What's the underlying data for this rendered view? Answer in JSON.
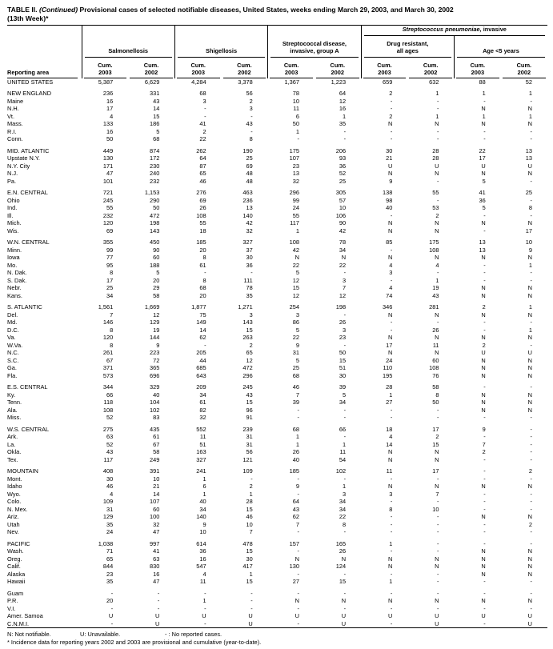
{
  "title": {
    "t1": "TABLE II. ",
    "t2": "(Continued)",
    "t3": " Provisional cases of selected notifiable diseases, United States, weeks ending March 29, 2003, and March 30, 2002",
    "line2": "(13th Week)*"
  },
  "header": {
    "reporting_area": "Reporting area",
    "strep_italic": "Streptococcus pneumoniae,",
    "strep_rest": " invasive",
    "groups": [
      "Salmonellosis",
      "Shigellosis",
      "Streptococcal disease,\ninvasive, group A",
      "Drug resistant,\nall ages",
      "Age <5 years"
    ],
    "cum_label": "Cum.",
    "year_cols": [
      "2003",
      "2002",
      "2003",
      "2002",
      "2003",
      "2002",
      "2003",
      "2002",
      "2003",
      "2002"
    ]
  },
  "table": {
    "rows": [
      {
        "a": "UNITED STATES",
        "v": [
          "5,387",
          "6,629",
          "4,284",
          "3,378",
          "1,367",
          "1,223",
          "659",
          "632",
          "88",
          "52"
        ]
      },
      {
        "a": "NEW ENGLAND",
        "gap": true,
        "v": [
          "236",
          "331",
          "68",
          "56",
          "78",
          "64",
          "2",
          "1",
          "1",
          "1"
        ]
      },
      {
        "a": "Maine",
        "v": [
          "16",
          "43",
          "3",
          "2",
          "10",
          "12",
          "-",
          "-",
          "-",
          "-"
        ]
      },
      {
        "a": "N.H.",
        "v": [
          "17",
          "14",
          "-",
          "3",
          "11",
          "16",
          "-",
          "-",
          "N",
          "N"
        ]
      },
      {
        "a": "Vt.",
        "v": [
          "4",
          "15",
          "-",
          "-",
          "6",
          "1",
          "2",
          "1",
          "1",
          "1"
        ]
      },
      {
        "a": "Mass.",
        "v": [
          "133",
          "186",
          "41",
          "43",
          "50",
          "35",
          "N",
          "N",
          "N",
          "N"
        ]
      },
      {
        "a": "R.I.",
        "v": [
          "16",
          "5",
          "2",
          "-",
          "1",
          "-",
          "-",
          "-",
          "-",
          "-"
        ]
      },
      {
        "a": "Conn.",
        "v": [
          "50",
          "68",
          "22",
          "8",
          "-",
          "-",
          "-",
          "-",
          "-",
          "-"
        ]
      },
      {
        "a": "MID. ATLANTIC",
        "gap": true,
        "v": [
          "449",
          "874",
          "262",
          "190",
          "175",
          "206",
          "30",
          "28",
          "22",
          "13"
        ]
      },
      {
        "a": "Upstate N.Y.",
        "v": [
          "130",
          "172",
          "64",
          "25",
          "107",
          "93",
          "21",
          "28",
          "17",
          "13"
        ]
      },
      {
        "a": "N.Y. City",
        "v": [
          "171",
          "230",
          "87",
          "69",
          "23",
          "36",
          "U",
          "U",
          "U",
          "U"
        ]
      },
      {
        "a": "N.J.",
        "v": [
          "47",
          "240",
          "65",
          "48",
          "13",
          "52",
          "N",
          "N",
          "N",
          "N"
        ]
      },
      {
        "a": "Pa.",
        "v": [
          "101",
          "232",
          "46",
          "48",
          "32",
          "25",
          "9",
          "-",
          "5",
          "-"
        ]
      },
      {
        "a": "E.N. CENTRAL",
        "gap": true,
        "v": [
          "721",
          "1,153",
          "276",
          "463",
          "296",
          "305",
          "138",
          "55",
          "41",
          "25"
        ]
      },
      {
        "a": "Ohio",
        "v": [
          "245",
          "290",
          "69",
          "236",
          "99",
          "57",
          "98",
          "-",
          "36",
          "-"
        ]
      },
      {
        "a": "Ind.",
        "v": [
          "55",
          "50",
          "26",
          "13",
          "24",
          "10",
          "40",
          "53",
          "5",
          "8"
        ]
      },
      {
        "a": "Ill.",
        "v": [
          "232",
          "472",
          "108",
          "140",
          "55",
          "106",
          "-",
          "2",
          "-",
          "-"
        ]
      },
      {
        "a": "Mich.",
        "v": [
          "120",
          "198",
          "55",
          "42",
          "117",
          "90",
          "N",
          "N",
          "N",
          "N"
        ]
      },
      {
        "a": "Wis.",
        "v": [
          "69",
          "143",
          "18",
          "32",
          "1",
          "42",
          "N",
          "N",
          "-",
          "17"
        ]
      },
      {
        "a": "W.N. CENTRAL",
        "gap": true,
        "v": [
          "355",
          "450",
          "185",
          "327",
          "108",
          "78",
          "85",
          "175",
          "13",
          "10"
        ]
      },
      {
        "a": "Minn.",
        "v": [
          "99",
          "90",
          "20",
          "37",
          "42",
          "34",
          "-",
          "108",
          "13",
          "9"
        ]
      },
      {
        "a": "Iowa",
        "v": [
          "77",
          "60",
          "8",
          "30",
          "N",
          "N",
          "N",
          "N",
          "N",
          "N"
        ]
      },
      {
        "a": "Mo.",
        "v": [
          "95",
          "188",
          "61",
          "36",
          "22",
          "22",
          "4",
          "4",
          "-",
          "1"
        ]
      },
      {
        "a": "N. Dak.",
        "v": [
          "8",
          "5",
          "-",
          "-",
          "5",
          "-",
          "3",
          "-",
          "-",
          "-"
        ]
      },
      {
        "a": "S. Dak.",
        "v": [
          "17",
          "20",
          "8",
          "111",
          "12",
          "3",
          "-",
          "1",
          "-",
          "-"
        ]
      },
      {
        "a": "Nebr.",
        "v": [
          "25",
          "29",
          "68",
          "78",
          "15",
          "7",
          "4",
          "19",
          "N",
          "N"
        ]
      },
      {
        "a": "Kans.",
        "v": [
          "34",
          "58",
          "20",
          "35",
          "12",
          "12",
          "74",
          "43",
          "N",
          "N"
        ]
      },
      {
        "a": "S. ATLANTIC",
        "gap": true,
        "v": [
          "1,561",
          "1,669",
          "1,877",
          "1,271",
          "254",
          "198",
          "346",
          "281",
          "2",
          "1"
        ]
      },
      {
        "a": "Del.",
        "v": [
          "7",
          "12",
          "75",
          "3",
          "3",
          "-",
          "N",
          "N",
          "N",
          "N"
        ]
      },
      {
        "a": "Md.",
        "v": [
          "146",
          "129",
          "149",
          "143",
          "86",
          "26",
          "-",
          "-",
          "-",
          "-"
        ]
      },
      {
        "a": "D.C.",
        "v": [
          "8",
          "19",
          "14",
          "15",
          "5",
          "3",
          "-",
          "26",
          "-",
          "1"
        ]
      },
      {
        "a": "Va.",
        "v": [
          "120",
          "144",
          "62",
          "263",
          "22",
          "23",
          "N",
          "N",
          "N",
          "N"
        ]
      },
      {
        "a": "W.Va.",
        "v": [
          "8",
          "9",
          "-",
          "2",
          "9",
          "-",
          "17",
          "11",
          "2",
          "-"
        ]
      },
      {
        "a": "N.C.",
        "v": [
          "261",
          "223",
          "205",
          "65",
          "31",
          "50",
          "N",
          "N",
          "U",
          "U"
        ]
      },
      {
        "a": "S.C.",
        "v": [
          "67",
          "72",
          "44",
          "12",
          "5",
          "15",
          "24",
          "60",
          "N",
          "N"
        ]
      },
      {
        "a": "Ga.",
        "v": [
          "371",
          "365",
          "685",
          "472",
          "25",
          "51",
          "110",
          "108",
          "N",
          "N"
        ]
      },
      {
        "a": "Fla.",
        "v": [
          "573",
          "696",
          "643",
          "296",
          "68",
          "30",
          "195",
          "76",
          "N",
          "N"
        ]
      },
      {
        "a": "E.S. CENTRAL",
        "gap": true,
        "v": [
          "344",
          "329",
          "209",
          "245",
          "46",
          "39",
          "28",
          "58",
          "-",
          "-"
        ]
      },
      {
        "a": "Ky.",
        "v": [
          "66",
          "40",
          "34",
          "43",
          "7",
          "5",
          "1",
          "8",
          "N",
          "N"
        ]
      },
      {
        "a": "Tenn.",
        "v": [
          "118",
          "104",
          "61",
          "15",
          "39",
          "34",
          "27",
          "50",
          "N",
          "N"
        ]
      },
      {
        "a": "Ala.",
        "v": [
          "108",
          "102",
          "82",
          "96",
          "-",
          "-",
          "-",
          "-",
          "N",
          "N"
        ]
      },
      {
        "a": "Miss.",
        "v": [
          "52",
          "83",
          "32",
          "91",
          "-",
          "-",
          "-",
          "-",
          "-",
          "-"
        ]
      },
      {
        "a": "W.S. CENTRAL",
        "gap": true,
        "v": [
          "275",
          "435",
          "552",
          "239",
          "68",
          "66",
          "18",
          "17",
          "9",
          "-"
        ]
      },
      {
        "a": "Ark.",
        "v": [
          "63",
          "61",
          "11",
          "31",
          "1",
          "-",
          "4",
          "2",
          "-",
          "-"
        ]
      },
      {
        "a": "La.",
        "v": [
          "52",
          "67",
          "51",
          "31",
          "1",
          "1",
          "14",
          "15",
          "7",
          "-"
        ]
      },
      {
        "a": "Okla.",
        "v": [
          "43",
          "58",
          "163",
          "56",
          "26",
          "11",
          "N",
          "N",
          "2",
          "-"
        ]
      },
      {
        "a": "Tex.",
        "v": [
          "117",
          "249",
          "327",
          "121",
          "40",
          "54",
          "N",
          "N",
          "-",
          "-"
        ]
      },
      {
        "a": "MOUNTAIN",
        "gap": true,
        "v": [
          "408",
          "391",
          "241",
          "109",
          "185",
          "102",
          "11",
          "17",
          "-",
          "2"
        ]
      },
      {
        "a": "Mont.",
        "v": [
          "30",
          "10",
          "1",
          "-",
          "-",
          "-",
          "-",
          "-",
          "-",
          "-"
        ]
      },
      {
        "a": "Idaho",
        "v": [
          "46",
          "21",
          "6",
          "2",
          "9",
          "1",
          "N",
          "N",
          "N",
          "N"
        ]
      },
      {
        "a": "Wyo.",
        "v": [
          "4",
          "14",
          "1",
          "1",
          "-",
          "3",
          "3",
          "7",
          "-",
          "-"
        ]
      },
      {
        "a": "Colo.",
        "v": [
          "109",
          "107",
          "40",
          "28",
          "64",
          "34",
          "-",
          "-",
          "-",
          "-"
        ]
      },
      {
        "a": "N. Mex.",
        "v": [
          "31",
          "60",
          "34",
          "15",
          "43",
          "34",
          "8",
          "10",
          "-",
          "-"
        ]
      },
      {
        "a": "Ariz.",
        "v": [
          "129",
          "100",
          "140",
          "46",
          "62",
          "22",
          "-",
          "-",
          "N",
          "N"
        ]
      },
      {
        "a": "Utah",
        "v": [
          "35",
          "32",
          "9",
          "10",
          "7",
          "8",
          "-",
          "-",
          "-",
          "2"
        ]
      },
      {
        "a": "Nev.",
        "v": [
          "24",
          "47",
          "10",
          "7",
          "-",
          "-",
          "-",
          "-",
          "-",
          "-"
        ]
      },
      {
        "a": "PACIFIC",
        "gap": true,
        "v": [
          "1,038",
          "997",
          "614",
          "478",
          "157",
          "165",
          "1",
          "-",
          "-",
          "-"
        ]
      },
      {
        "a": "Wash.",
        "v": [
          "71",
          "41",
          "36",
          "15",
          "-",
          "26",
          "-",
          "-",
          "N",
          "N"
        ]
      },
      {
        "a": "Oreg.",
        "v": [
          "65",
          "63",
          "16",
          "30",
          "N",
          "N",
          "N",
          "N",
          "N",
          "N"
        ]
      },
      {
        "a": "Calif.",
        "v": [
          "844",
          "830",
          "547",
          "417",
          "130",
          "124",
          "N",
          "N",
          "N",
          "N"
        ]
      },
      {
        "a": "Alaska",
        "v": [
          "23",
          "16",
          "4",
          "1",
          "-",
          "-",
          "-",
          "-",
          "N",
          "N"
        ]
      },
      {
        "a": "Hawaii",
        "v": [
          "35",
          "47",
          "11",
          "15",
          "27",
          "15",
          "1",
          "-",
          "-",
          "-"
        ]
      },
      {
        "a": "Guam",
        "gap": true,
        "v": [
          "-",
          "-",
          "-",
          "-",
          "-",
          "-",
          "-",
          "-",
          "-",
          "-"
        ]
      },
      {
        "a": "P.R.",
        "v": [
          "20",
          "-",
          "1",
          "-",
          "N",
          "N",
          "N",
          "N",
          "N",
          "N"
        ]
      },
      {
        "a": "V.I.",
        "v": [
          "-",
          "-",
          "-",
          "-",
          "-",
          "-",
          "-",
          "-",
          "-",
          "-"
        ]
      },
      {
        "a": "Amer. Samoa",
        "v": [
          "U",
          "U",
          "U",
          "U",
          "U",
          "U",
          "U",
          "U",
          "U",
          "U"
        ]
      },
      {
        "a": "C.N.M.I.",
        "v": [
          "-",
          "U",
          "-",
          "U",
          "-",
          "U",
          "-",
          "U",
          "-",
          "U"
        ]
      }
    ]
  },
  "footnotes": {
    "n": "N: Not notifiable.",
    "u": "U: Unavailable.",
    "dash": "- : No reported cases.",
    "star": "* Incidence data for reporting years 2002 and 2003 are provisional and cumulative (year-to-date)."
  }
}
